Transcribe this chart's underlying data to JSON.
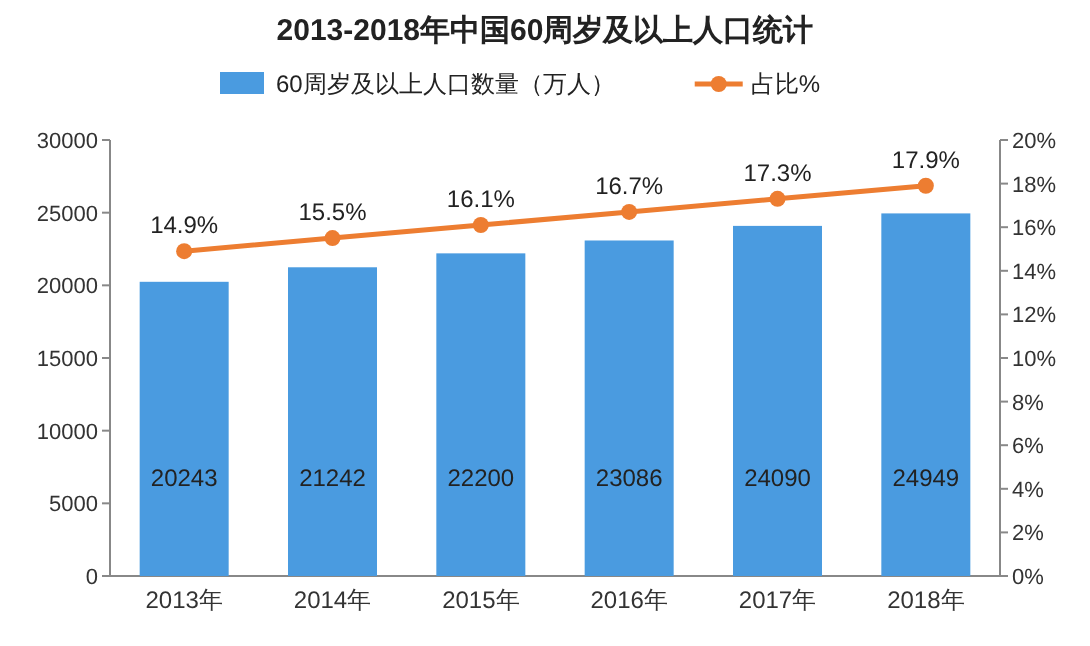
{
  "chart_data": {
    "type": "bar",
    "title": "2013-2018年中国60周岁及以上人口统计",
    "categories": [
      "2013年",
      "2014年",
      "2015年",
      "2016年",
      "2017年",
      "2018年"
    ],
    "series": [
      {
        "name": "60周岁及以上人口数量（万人）",
        "color": "#4a9be0",
        "values": [
          20243,
          21242,
          22200,
          23086,
          24090,
          24949
        ]
      },
      {
        "name": "占比%",
        "type": "line",
        "axis": "y2",
        "color": "#ed7d31",
        "values": [
          14.9,
          15.5,
          16.1,
          16.7,
          17.3,
          17.9
        ],
        "value_labels": [
          "14.9%",
          "15.5%",
          "16.1%",
          "16.7%",
          "17.3%",
          "17.9%"
        ]
      }
    ],
    "ylim": [
      0,
      30000
    ],
    "yticks": [
      0,
      5000,
      10000,
      15000,
      20000,
      25000,
      30000
    ],
    "y2lim": [
      0,
      20
    ],
    "y2ticks": [
      {
        "value": 0,
        "label": "0%"
      },
      {
        "value": 2,
        "label": "2%"
      },
      {
        "value": 4,
        "label": "4%"
      },
      {
        "value": 6,
        "label": "6%"
      },
      {
        "value": 8,
        "label": "8%"
      },
      {
        "value": 10,
        "label": "10%"
      },
      {
        "value": 12,
        "label": "12%"
      },
      {
        "value": 14,
        "label": "14%"
      },
      {
        "value": 16,
        "label": "16%"
      },
      {
        "value": 18,
        "label": "18%"
      },
      {
        "value": 20,
        "label": "20%"
      }
    ],
    "data_labels": true,
    "legend": "top",
    "marker": "circle",
    "grid": false
  }
}
